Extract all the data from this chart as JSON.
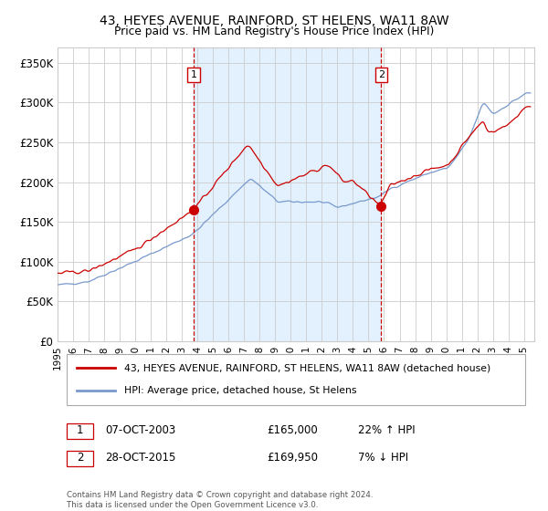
{
  "title1": "43, HEYES AVENUE, RAINFORD, ST HELENS, WA11 8AW",
  "title2": "Price paid vs. HM Land Registry's House Price Index (HPI)",
  "sale1_label": "07-OCT-2003",
  "sale1_price": 165000,
  "sale1_price_str": "£165,000",
  "sale1_hpi_text": "22% ↑ HPI",
  "sale2_label": "28-OCT-2015",
  "sale2_price": 169950,
  "sale2_price_str": "£169,950",
  "sale2_hpi_text": "7% ↓ HPI",
  "legend1": "43, HEYES AVENUE, RAINFORD, ST HELENS, WA11 8AW (detached house)",
  "legend2": "HPI: Average price, detached house, St Helens",
  "footer": "Contains HM Land Registry data © Crown copyright and database right 2024.\nThis data is licensed under the Open Government Licence v3.0.",
  "red_color": "#cc0000",
  "blue_color": "#7799cc",
  "bg_shade_color": "#ddeeff",
  "vline_color": "#cc0000",
  "grid_color": "#cccccc",
  "ylim": [
    0,
    370000
  ],
  "yticks": [
    0,
    50000,
    100000,
    150000,
    200000,
    250000,
    300000,
    350000
  ],
  "ytick_labels": [
    "£0",
    "£50K",
    "£100K",
    "£150K",
    "£200K",
    "£250K",
    "£300K",
    "£350K"
  ]
}
